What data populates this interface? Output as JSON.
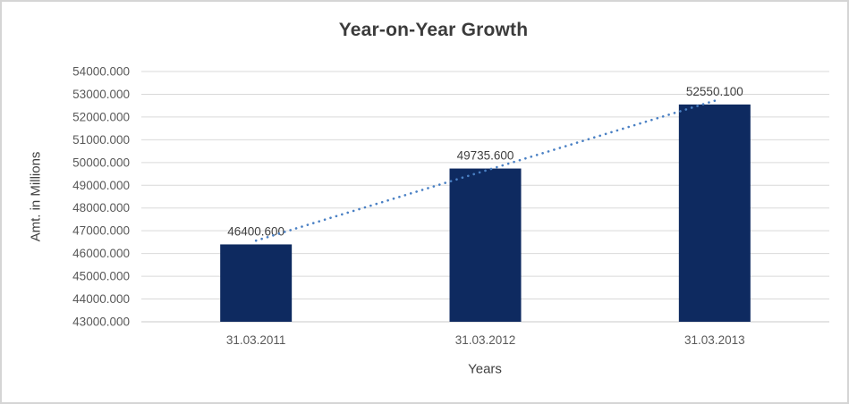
{
  "window": {
    "background_color": "#ffffff",
    "border_color": "#d5d5d5"
  },
  "chart_data": {
    "type": "bar",
    "title": "Year-on-Year Growth",
    "xlabel": "Years",
    "ylabel": "Amt. in Millions",
    "categories": [
      "31.03.2011",
      "31.03.2012",
      "31.03.2013"
    ],
    "values": [
      46400.6,
      49735.6,
      52550.1
    ],
    "data_labels": [
      "46400.600",
      "49735.600",
      "52550.100"
    ],
    "ylim": [
      43000,
      54000
    ],
    "ytick_step": 1000,
    "ytick_decimals": 3,
    "grid": true,
    "legend": "none",
    "bar_color": "#0e2a60",
    "gridline_color": "#d9d9d9",
    "axis_line_color": "#c8c8c8",
    "trendline": {
      "type": "linear",
      "style": "dotted",
      "color": "#4a80c4"
    },
    "colors": {
      "title_text": "#3b3b3b",
      "tick_text": "#595959",
      "data_label_text": "#404040"
    }
  }
}
